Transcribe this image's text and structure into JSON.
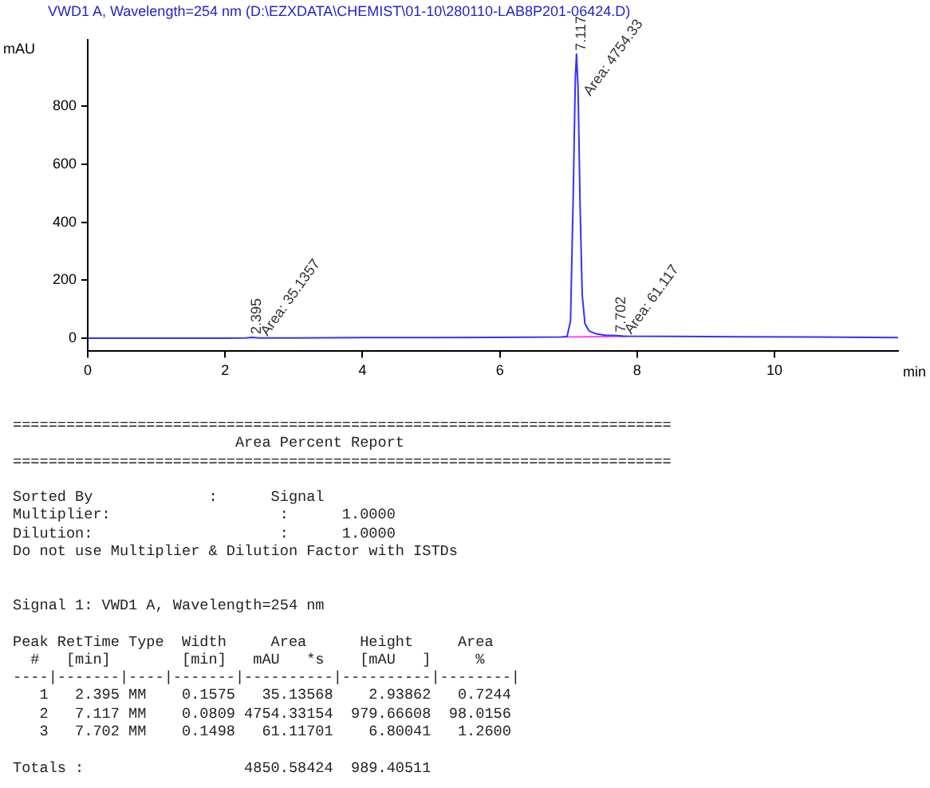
{
  "chart_data": {
    "type": "line",
    "title": "VWD1 A, Wavelength=254 nm (D:\\EZXDATA\\CHEMIST\\01-10\\280110-LAB8P201-06424.D)",
    "ylabel": "mAU",
    "xlabel": "min",
    "xlim": [
      0,
      11.8
    ],
    "xticks": [
      0,
      2,
      4,
      6,
      8,
      10
    ],
    "ylim": [
      -45,
      1030
    ],
    "yticks": [
      0,
      200,
      400,
      600,
      800
    ],
    "grid": false,
    "legend": false,
    "marker": "none",
    "line_style": "solid",
    "series": [
      {
        "color": "#3333ff",
        "x": [
          0,
          1,
          2,
          2.3,
          2.395,
          2.5,
          3,
          4,
          5,
          6,
          6.9,
          6.98,
          7.03,
          7.07,
          7.1,
          7.117,
          7.14,
          7.17,
          7.2,
          7.24,
          7.3,
          7.4,
          7.55,
          7.702,
          7.8,
          8.5,
          9.5,
          10.5,
          11.8
        ],
        "values": [
          0,
          0,
          0,
          1,
          3,
          1,
          1,
          2,
          2,
          3,
          4,
          6,
          60,
          500,
          900,
          980,
          860,
          450,
          150,
          50,
          25,
          15,
          10,
          9,
          7,
          6,
          5,
          4,
          2
        ]
      },
      {
        "color": "#ff44ff",
        "x": [
          6.95,
          7.62,
          7.85
        ],
        "values": [
          4,
          6,
          6
        ]
      }
    ],
    "annotations": [
      {
        "text": "2.395",
        "x": 2.395,
        "y": 2.9
      },
      {
        "text": "Area: 35.1357",
        "x": 2.5,
        "y": 2.9
      },
      {
        "text": "7.117",
        "x": 7.117,
        "y": 980
      },
      {
        "text": "Area: 4754.33",
        "x": 7.2,
        "y": 830
      },
      {
        "text": "7.702",
        "x": 7.702,
        "y": 9
      },
      {
        "text": "Area: 61.117",
        "x": 7.8,
        "y": 9
      },
      "==========================================================================\n                         Area Percent Report\n==========================================================================\n\nSorted By             :      Signal\nMultiplier:                   :      1.0000\nDilution:                     :      1.0000\nDo not use Multiplier & Dilution Factor with ISTDs\n\n\nSignal 1: VWD1 A, Wavelength=254 nm\n\nPeak RetTime Type  Width     Area      Height     Area  \n  #   [min]        [min]   mAU   *s    [mAU   ]     %   \n----|-------|----|-------|----------|----------|--------|\n   1   2.395 MM    0.1575   35.13568    2.93862   0.7244\n   2   7.117 MM    0.0809 4754.33154  979.66608  98.0156\n   3   7.702 MM    0.1498   61.11701    6.80041   1.2600\n\nTotals :                  4850.58424  989.40511"
    ]
  }
}
